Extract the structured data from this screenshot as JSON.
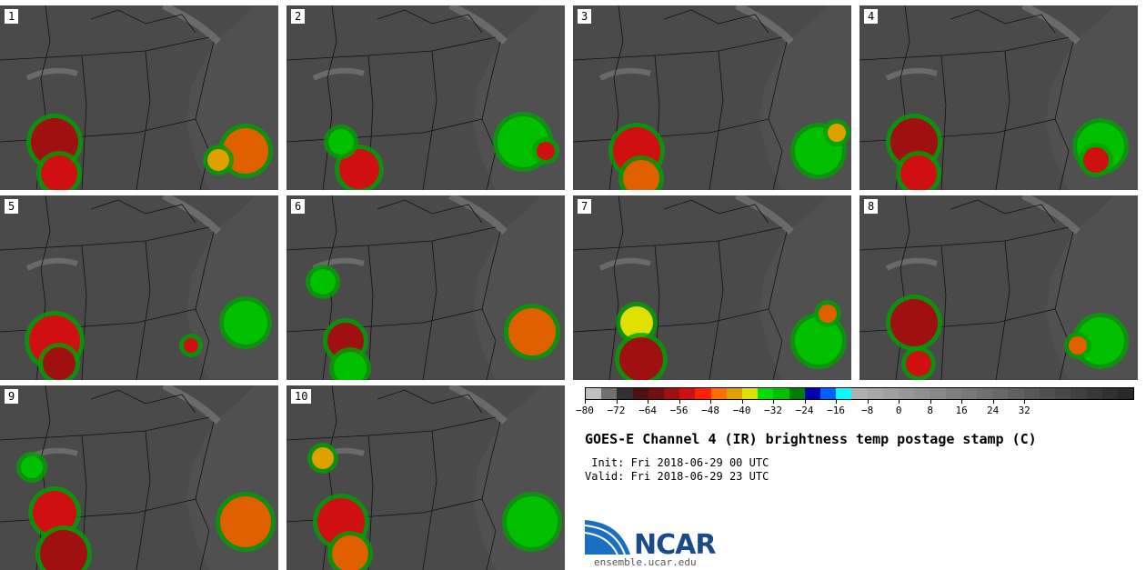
{
  "panels": [
    {
      "label": "1"
    },
    {
      "label": "2"
    },
    {
      "label": "3"
    },
    {
      "label": "4"
    },
    {
      "label": "5"
    },
    {
      "label": "6"
    },
    {
      "label": "7"
    },
    {
      "label": "8"
    },
    {
      "label": "9"
    },
    {
      "label": "10"
    }
  ],
  "colorbar": {
    "colors": [
      "#c0c0c0",
      "#707070",
      "#303030",
      "#501010",
      "#701010",
      "#a01010",
      "#d01010",
      "#ff2000",
      "#ff7000",
      "#e0a000",
      "#e0e000",
      "#00e000",
      "#00c000",
      "#008000",
      "#0000b0",
      "#0060ff",
      "#00ffff",
      "#b0b0b0",
      "#a8a8a8",
      "#a0a0a0",
      "#989898",
      "#909090",
      "#888888",
      "#808080",
      "#787878",
      "#707070",
      "#686868",
      "#606060",
      "#585858",
      "#505050",
      "#484848",
      "#404040",
      "#383838",
      "#303030",
      "#282828"
    ],
    "tick_labels": [
      "−80",
      "−72",
      "−64",
      "−56",
      "−48",
      "−40",
      "−32",
      "−24",
      "−16",
      "−8",
      "0",
      "8",
      "16",
      "24",
      "32"
    ]
  },
  "title": "GOES-E Channel 4 (IR) brightness temp postage stamp (C)",
  "init_line": " Init: Fri 2018-06-29 00 UTC",
  "valid_line": "Valid: Fri 2018-06-29 23 UTC",
  "logo": {
    "text": "NCAR",
    "url": "ensemble.ucar.edu"
  }
}
